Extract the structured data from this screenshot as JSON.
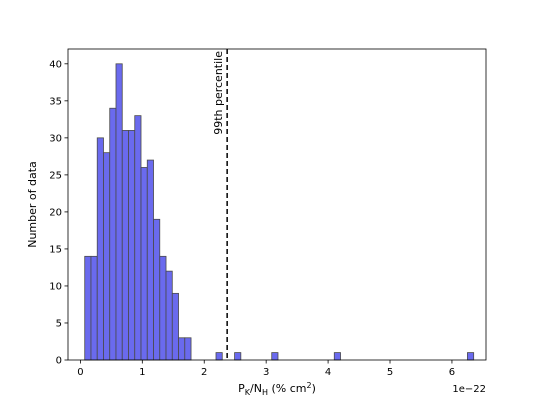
{
  "chart_data": {
    "type": "bar",
    "subtype": "histogram",
    "title": "",
    "xlabel_parts": {
      "main": "P",
      "sub1": "K",
      "slash": "/N",
      "sub2": "H",
      "unit": " (% cm",
      "sup": "2",
      "close": ")"
    },
    "ylabel": "Number of data",
    "x_offset_label": "1e−22",
    "xlim": [
      -0.2,
      6.55
    ],
    "ylim": [
      0,
      42
    ],
    "xticks": [
      0,
      1,
      2,
      3,
      4,
      5,
      6
    ],
    "yticks": [
      0,
      5,
      10,
      15,
      20,
      25,
      30,
      35,
      40
    ],
    "bin_width": 0.101,
    "bins": [
      {
        "x": 0.07,
        "count": 14
      },
      {
        "x": 0.171,
        "count": 14
      },
      {
        "x": 0.272,
        "count": 30
      },
      {
        "x": 0.373,
        "count": 28
      },
      {
        "x": 0.474,
        "count": 34
      },
      {
        "x": 0.575,
        "count": 40
      },
      {
        "x": 0.676,
        "count": 31
      },
      {
        "x": 0.777,
        "count": 31
      },
      {
        "x": 0.878,
        "count": 33
      },
      {
        "x": 0.979,
        "count": 26
      },
      {
        "x": 1.08,
        "count": 27
      },
      {
        "x": 1.181,
        "count": 19
      },
      {
        "x": 1.282,
        "count": 14
      },
      {
        "x": 1.383,
        "count": 12
      },
      {
        "x": 1.484,
        "count": 9
      },
      {
        "x": 1.585,
        "count": 3
      },
      {
        "x": 1.686,
        "count": 3
      },
      {
        "x": 2.19,
        "count": 1
      },
      {
        "x": 2.49,
        "count": 1
      },
      {
        "x": 3.09,
        "count": 1
      },
      {
        "x": 4.1,
        "count": 1
      },
      {
        "x": 6.25,
        "count": 1
      }
    ],
    "threshold": {
      "x": 2.37,
      "label": "99th percentile"
    },
    "bar_color": "#6a6aee",
    "bar_edge_color": "#4a4a4a",
    "grid": false,
    "legend": "none"
  }
}
